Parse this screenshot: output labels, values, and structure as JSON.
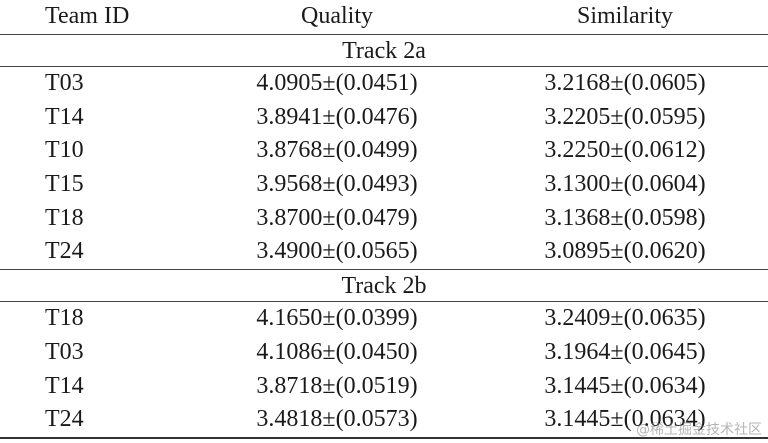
{
  "table": {
    "header": [
      "Team ID",
      "Quality",
      "Similarity"
    ],
    "sections": [
      {
        "title": "Track 2a",
        "rows": [
          [
            "T03",
            "4.0905±(0.0451)",
            "3.2168±(0.0605)"
          ],
          [
            "T14",
            "3.8941±(0.0476)",
            "3.2205±(0.0595)"
          ],
          [
            "T10",
            "3.8768±(0.0499)",
            "3.2250±(0.0612)"
          ],
          [
            "T15",
            "3.9568±(0.0493)",
            "3.1300±(0.0604)"
          ],
          [
            "T18",
            "3.8700±(0.0479)",
            "3.1368±(0.0598)"
          ],
          [
            "T24",
            "3.4900±(0.0565)",
            "3.0895±(0.0620)"
          ]
        ]
      },
      {
        "title": "Track 2b",
        "rows": [
          [
            "T18",
            "4.1650±(0.0399)",
            "3.2409±(0.0635)"
          ],
          [
            "T03",
            "4.1086±(0.0450)",
            "3.1964±(0.0645)"
          ],
          [
            "T14",
            "3.8718±(0.0519)",
            "3.1445±(0.0634)"
          ],
          [
            "T24",
            "3.4818±(0.0573)",
            "3.1445±(0.0634)"
          ]
        ]
      }
    ]
  },
  "watermark": "@稀土掘金技术社区"
}
